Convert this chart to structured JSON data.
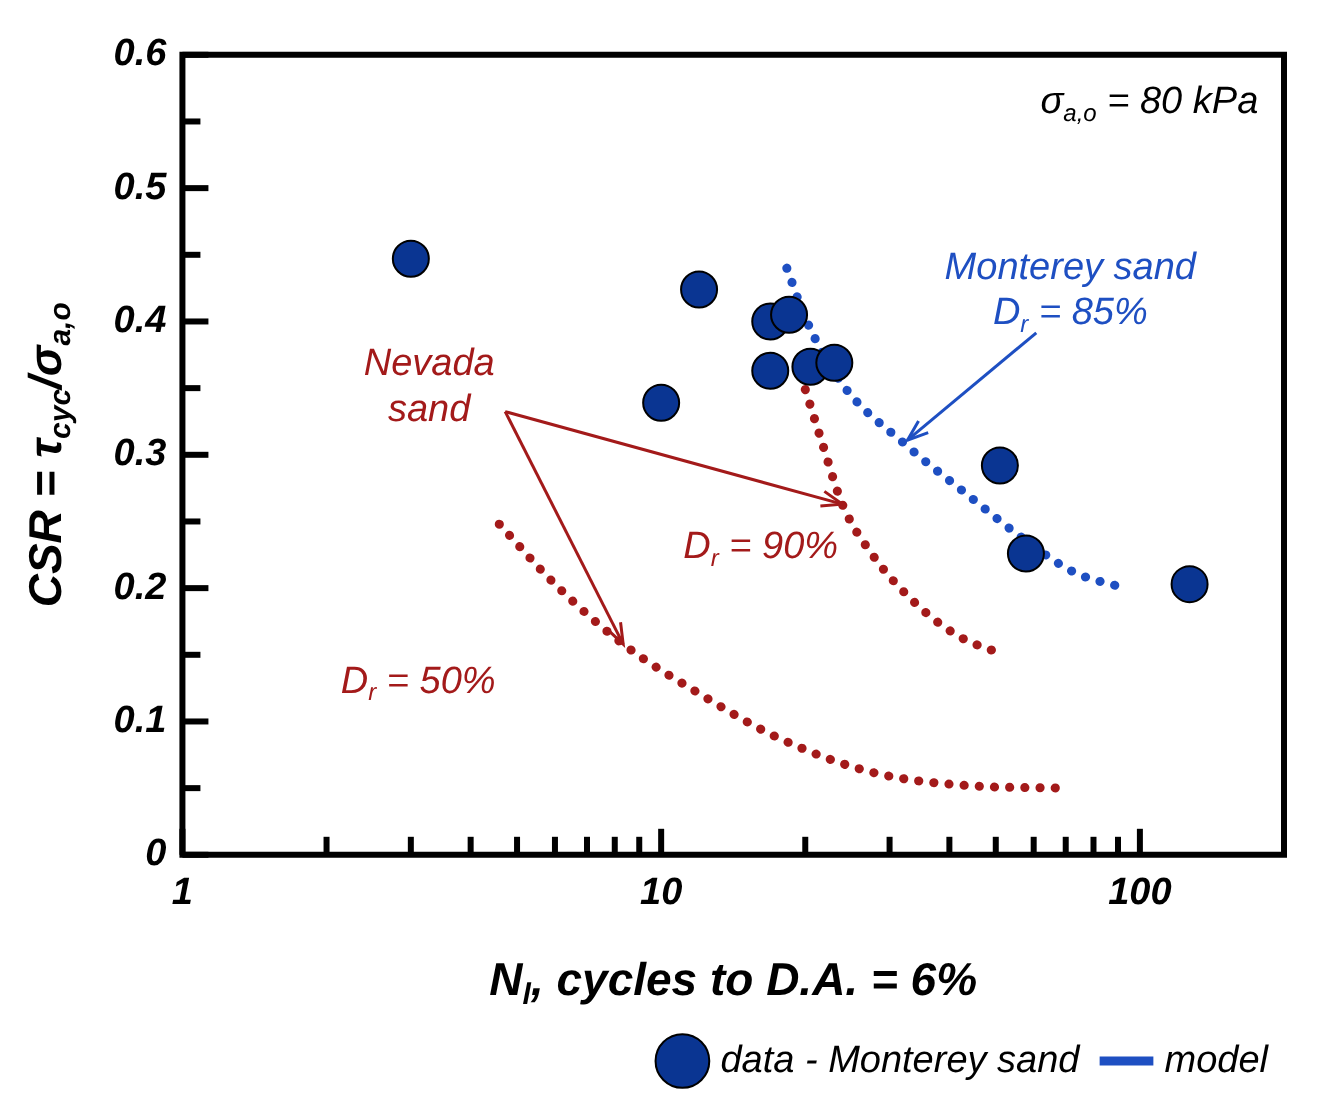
{
  "chart_data": {
    "type": "scatter",
    "xlabel": "N$_{l}$, cycles to D.A. = 6%",
    "ylabel": "CSR = τ$_{cyc}$/σ$_{a,o}$",
    "log": "x",
    "legend": "bottom",
    "xlim": [
      1,
      200
    ],
    "ylim": [
      0,
      0.6
    ],
    "xticks": [
      1,
      {
        "value": 2,
        "label": null
      },
      {
        "value": 3,
        "label": null
      },
      {
        "value": 4,
        "label": null
      },
      {
        "value": 5,
        "label": null
      },
      {
        "value": 6,
        "label": null
      },
      {
        "value": 7,
        "label": null
      },
      {
        "value": 8,
        "label": null
      },
      {
        "value": 9,
        "label": null
      },
      10,
      {
        "value": 20,
        "label": null
      },
      {
        "value": 30,
        "label": null
      },
      {
        "value": 40,
        "label": null
      },
      {
        "value": 50,
        "label": null
      },
      {
        "value": 60,
        "label": null
      },
      {
        "value": 70,
        "label": null
      },
      {
        "value": 80,
        "label": null
      },
      {
        "value": 90,
        "label": null
      },
      100
    ],
    "yticks": [
      0,
      {
        "value": 0.05,
        "label": null
      },
      0.1,
      {
        "value": 0.15,
        "label": null
      },
      0.2,
      {
        "value": 0.25,
        "label": null
      },
      0.3,
      {
        "value": 0.35,
        "label": null
      },
      0.4,
      {
        "value": 0.45,
        "label": null
      },
      0.5,
      {
        "value": 0.55,
        "label": null
      },
      0.6
    ],
    "series": [
      {
        "name": "data - Monterey sand",
        "marker": "circle",
        "color": "#0a3592",
        "x": [
          3.0,
          10.0,
          12.0,
          16.9,
          18.5,
          16.9,
          20.5,
          23.0,
          51.0,
          57.8,
          127
        ],
        "values": [
          0.447,
          0.339,
          0.424,
          0.4,
          0.405,
          0.363,
          0.366,
          0.369,
          0.292,
          0.226,
          0.203
        ]
      },
      {
        "name": "model",
        "type": "line",
        "marker": "none",
        "line_style": "dotted",
        "color": "#1e4fc2",
        "x": [
          18.3,
          20.1,
          23.9,
          32.3,
          43.3,
          57.1,
          72.8,
          93
        ],
        "values": [
          0.44,
          0.401,
          0.353,
          0.308,
          0.271,
          0.237,
          0.212,
          0.2
        ]
      },
      {
        "type": "line",
        "marker": "none",
        "line_style": "dotted",
        "color": "#a31a1a",
        "x": [
          20.0,
          21.6,
          23.9,
          27.5,
          33.9,
          41.8,
          52.1
        ],
        "values": [
          0.349,
          0.311,
          0.263,
          0.226,
          0.189,
          0.164,
          0.15
        ]
      },
      {
        "type": "line",
        "marker": "none",
        "line_style": "dotted",
        "color": "#a31a1a",
        "x": [
          4.59,
          6.0,
          8.33,
          12.0,
          17.5,
          27.5,
          43.3,
          69.1
        ],
        "values": [
          0.248,
          0.203,
          0.158,
          0.121,
          0.088,
          0.062,
          0.052,
          0.05
        ]
      }
    ],
    "annotations": [
      "σ$_{a,o}$ = 80 kPa",
      {
        "text": "Monterey sand\nD$_{r}$ = 85%",
        "x": 32.7,
        "y": 0.311
      },
      {
        "text": "Nevada\nsand",
        "x": 23.9,
        "y": 0.263
      },
      "D$_{r}$ = 90%",
      "D$_{r}$ = 50%"
    ]
  }
}
